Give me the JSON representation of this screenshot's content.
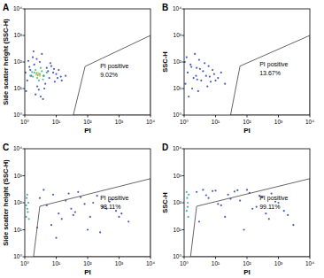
{
  "chart_data": [
    {
      "type": "scatter",
      "panel": "A",
      "x_label": "PI",
      "y_label": "Side scatter height (SSC-H)",
      "log": true,
      "xlim": [
        1,
        10000
      ],
      "ylim": [
        1,
        10000
      ],
      "xticks": [
        {
          "value": 1,
          "label": "10⁰"
        },
        {
          "value": 10,
          "label": "10¹"
        },
        {
          "value": 100,
          "label": "10²"
        },
        {
          "value": 1000,
          "label": "10³"
        },
        {
          "value": 10000,
          "label": "10⁴"
        }
      ],
      "yticks": [
        {
          "value": 1,
          "label": "10⁰"
        },
        {
          "value": 10,
          "label": "10¹"
        },
        {
          "value": 100,
          "label": "10²"
        },
        {
          "value": 1000,
          "label": "10³"
        },
        {
          "value": 10000,
          "label": "10⁴"
        }
      ],
      "gate": [
        [
          35,
          1
        ],
        [
          83,
          68
        ],
        [
          10000,
          1000
        ],
        [
          10000,
          1
        ]
      ],
      "annotations": [
        "PI positive",
        "9.02%"
      ],
      "series": [
        {
          "color": "#2b3fb5",
          "x": [
            1.2,
            1.5,
            2,
            2.5,
            3,
            4,
            5,
            6,
            8,
            10,
            12,
            15,
            1.1,
            1.8,
            2.2,
            3.5,
            4.5,
            7,
            9,
            1.3,
            2.8,
            5.5,
            1.6,
            3.2,
            6.5,
            11,
            1.4,
            2.4,
            4.2,
            8.5,
            20,
            1.9,
            3.8,
            14,
            1.05
          ],
          "values": [
            20,
            50,
            80,
            12,
            100,
            30,
            60,
            25,
            40,
            35,
            50,
            20,
            8,
            150,
            6,
            200,
            15,
            70,
            18,
            110,
            9,
            45,
            30,
            5,
            90,
            25,
            65,
            130,
            10,
            55,
            30,
            250,
            4,
            28,
            40
          ]
        },
        {
          "color": "#3cb371",
          "x": [
            1.5,
            2,
            2.5,
            3,
            3.5,
            2.2,
            2.8,
            1.8,
            4,
            3.2,
            2.6,
            1.7,
            3.8,
            2.4,
            5
          ],
          "values": [
            30,
            40,
            25,
            35,
            45,
            50,
            20,
            28,
            30,
            60,
            32,
            42,
            22,
            38,
            40
          ]
        },
        {
          "color": "#e0c020",
          "x": [
            2.3,
            2.7,
            3
          ],
          "values": [
            33,
            38,
            30
          ]
        }
      ]
    },
    {
      "type": "scatter",
      "panel": "B",
      "x_label": "PI",
      "y_label": "SSC-H",
      "log": true,
      "xlim": [
        1,
        10000
      ],
      "ylim": [
        1,
        10000
      ],
      "xticks": [
        {
          "value": 1,
          "label": "10⁰"
        },
        {
          "value": 10,
          "label": "10¹"
        },
        {
          "value": 100,
          "label": "10²"
        },
        {
          "value": 1000,
          "label": "10³"
        },
        {
          "value": 10000,
          "label": "10⁴"
        }
      ],
      "yticks": [
        {
          "value": 1,
          "label": "10⁰"
        },
        {
          "value": 10,
          "label": "10¹"
        },
        {
          "value": 100,
          "label": "10²"
        },
        {
          "value": 1000,
          "label": "10³"
        },
        {
          "value": 10000,
          "label": "10⁴"
        }
      ],
      "gate": [
        [
          30,
          1
        ],
        [
          60,
          70
        ],
        [
          10000,
          1000
        ],
        [
          10000,
          1
        ]
      ],
      "annotations": [
        "PI positive",
        "13.67%"
      ],
      "series": [
        {
          "color": "#2b3fb5",
          "x": [
            1.1,
            1.3,
            1.6,
            2,
            2.5,
            3,
            3.5,
            4,
            5,
            6,
            7,
            9,
            12,
            15,
            20,
            1.2,
            1.8,
            2.2,
            2.8,
            4.5,
            5.5,
            8,
            1.4,
            2.4,
            3.2,
            1.05,
            1.7,
            2.6,
            6.5,
            10
          ],
          "values": [
            15,
            40,
            80,
            25,
            60,
            120,
            20,
            45,
            30,
            70,
            18,
            35,
            25,
            40,
            15,
            150,
            10,
            200,
            8,
            90,
            12,
            50,
            5,
            30,
            55,
            100,
            65,
            22,
            28,
            20
          ]
        }
      ]
    },
    {
      "type": "scatter",
      "panel": "C",
      "x_label": "PI",
      "y_label": "Side scatter height (SSC-H)",
      "log": true,
      "xlim": [
        1,
        10000
      ],
      "ylim": [
        1,
        10000
      ],
      "xticks": [
        {
          "value": 1,
          "label": "10⁰"
        },
        {
          "value": 10,
          "label": "10¹"
        },
        {
          "value": 100,
          "label": "10²"
        },
        {
          "value": 1000,
          "label": "10³"
        },
        {
          "value": 10000,
          "label": "10⁴"
        }
      ],
      "yticks": [
        {
          "value": 1,
          "label": "10⁰"
        },
        {
          "value": 10,
          "label": "10¹"
        },
        {
          "value": 100,
          "label": "10²"
        },
        {
          "value": 1000,
          "label": "10³"
        },
        {
          "value": 10000,
          "label": "10⁴"
        }
      ],
      "gate": [
        [
          1.9,
          1
        ],
        [
          3,
          74
        ],
        [
          10000,
          780
        ],
        [
          10000,
          1
        ]
      ],
      "annotations": [
        "PI positive",
        "98.11%"
      ],
      "series": [
        {
          "color": "#2aa198",
          "x": [
            1.1,
            1.2,
            1.3,
            1.15,
            1.25,
            1.1,
            1.2,
            1.35
          ],
          "values": [
            30,
            60,
            100,
            150,
            45,
            80,
            200,
            25
          ]
        },
        {
          "color": "#2b3fb5",
          "x": [
            3,
            5,
            8,
            12,
            20,
            30,
            50,
            80,
            120,
            200,
            300,
            500,
            800,
            1200,
            2000,
            4,
            7,
            15,
            25,
            40,
            60,
            100,
            150,
            250,
            400,
            600,
            1000,
            2.5,
            10,
            35
          ],
          "values": [
            150,
            80,
            200,
            40,
            120,
            60,
            250,
            90,
            30,
            180,
            70,
            110,
            50,
            40,
            20,
            300,
            15,
            25,
            220,
            45,
            160,
            10,
            100,
            8,
            60,
            130,
            30,
            12,
            5,
            35
          ]
        }
      ]
    },
    {
      "type": "scatter",
      "panel": "D",
      "x_label": "PI",
      "y_label": "SSC-H",
      "log": true,
      "xlim": [
        1,
        10000
      ],
      "ylim": [
        1,
        10000
      ],
      "xticks": [
        {
          "value": 1,
          "label": "10⁰"
        },
        {
          "value": 10,
          "label": "10¹"
        },
        {
          "value": 100,
          "label": "10²"
        },
        {
          "value": 1000,
          "label": "10³"
        },
        {
          "value": 10000,
          "label": "10⁴"
        }
      ],
      "yticks": [
        {
          "value": 1,
          "label": "10⁰"
        },
        {
          "value": 10,
          "label": "10¹"
        },
        {
          "value": 100,
          "label": "10²"
        },
        {
          "value": 1000,
          "label": "10³"
        },
        {
          "value": 10000,
          "label": "10⁴"
        }
      ],
      "gate": [
        [
          1.6,
          1
        ],
        [
          2.5,
          74
        ],
        [
          10000,
          780
        ],
        [
          10000,
          1
        ]
      ],
      "annotations": [
        "PI positive",
        "99.11%"
      ],
      "series": [
        {
          "color": "#2aa198",
          "x": [
            1.2,
            1.3,
            1.4,
            1.25,
            1.35,
            1.2,
            1.3
          ],
          "values": [
            50,
            100,
            200,
            150,
            30,
            250,
            70
          ]
        },
        {
          "color": "#2b3fb5",
          "x": [
            2.5,
            4,
            6,
            10,
            15,
            25,
            40,
            60,
            100,
            150,
            250,
            400,
            600,
            1000,
            1500,
            3,
            8,
            20,
            30,
            50,
            80,
            120,
            200,
            300,
            500,
            800,
            2000,
            3000,
            5,
            12
          ],
          "values": [
            250,
            300,
            150,
            280,
            80,
            200,
            260,
            120,
            300,
            60,
            180,
            40,
            220,
            100,
            50,
            20,
            270,
            30,
            140,
            290,
            10,
            230,
            70,
            160,
            25,
            110,
            35,
            15,
            190,
            90
          ]
        }
      ]
    }
  ]
}
